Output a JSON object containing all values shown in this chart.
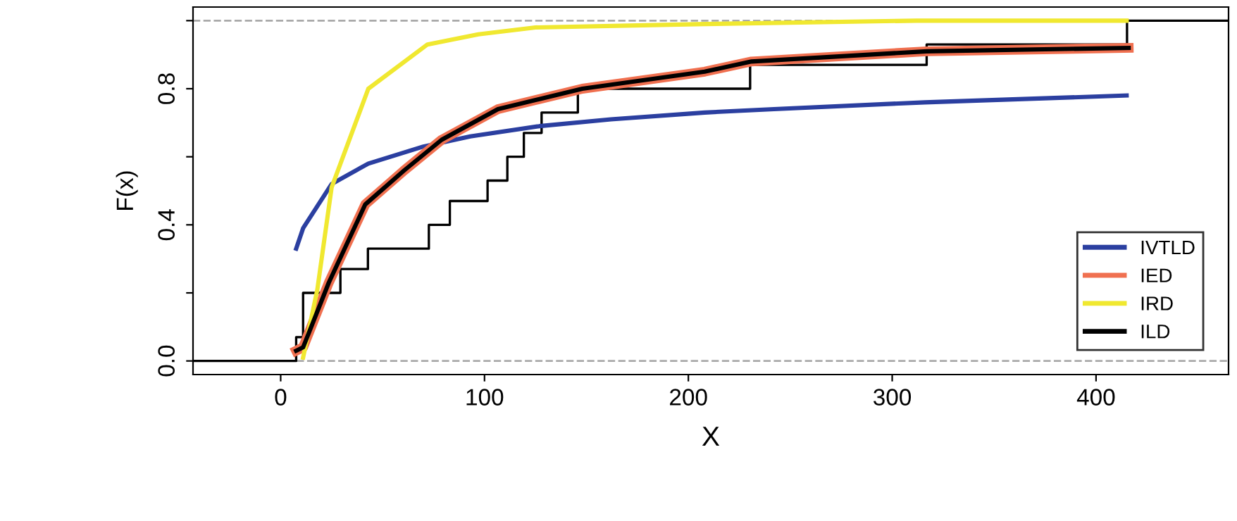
{
  "chart_data": {
    "type": "line",
    "xlabel": "X",
    "ylabel": "F(x)",
    "xlim": [
      -43,
      465
    ],
    "ylim": [
      -0.04,
      1.04
    ],
    "xticks": [
      0,
      100,
      200,
      300,
      400
    ],
    "yticks": [
      {
        "value": 0,
        "label": "0.0"
      },
      {
        "value": 0.2,
        "label": null
      },
      {
        "value": 0.4,
        "label": "0.4"
      },
      {
        "value": 0.6,
        "label": null
      },
      {
        "value": 0.8,
        "label": "0.8"
      },
      {
        "value": 1,
        "label": null
      }
    ],
    "grid": false,
    "legend": "bottom right",
    "line_style": "solid",
    "marker": "none",
    "ref_lines": [
      {
        "axis": "y",
        "value": 0,
        "color": "#aaaaaa",
        "line_style": "dashed"
      },
      {
        "axis": "y",
        "value": 1,
        "color": "#aaaaaa",
        "line_style": "dashed"
      }
    ],
    "series": [
      {
        "type": "step",
        "color": "#000000",
        "x": [
          -43,
          7.6,
          11,
          14.5,
          29.3,
          42.8,
          72.7,
          83,
          101.5,
          111.2,
          119.3,
          128,
          145.8,
          230.3,
          316.9,
          415.2,
          465
        ],
        "values": [
          0,
          0.07,
          0.2,
          0.2,
          0.27,
          0.33,
          0.4,
          0.47,
          0.53,
          0.6,
          0.67,
          0.73,
          0.8,
          0.87,
          0.93,
          1,
          1
        ]
      },
      {
        "name": "IVTLD",
        "color": "#2b3fa0",
        "x": [
          7.6,
          11,
          25,
          43,
          70,
          93,
          127,
          162,
          208,
          242,
          316,
          415
        ],
        "values": [
          0.33,
          0.39,
          0.52,
          0.58,
          0.63,
          0.66,
          0.69,
          0.71,
          0.73,
          0.74,
          0.76,
          0.78
        ]
      },
      {
        "name": "IED",
        "color": "#f07050",
        "x": [
          7.6,
          11,
          23.6,
          41.5,
          60.6,
          79,
          106.6,
          127.3,
          148,
          208,
          231,
          317,
          416
        ],
        "values": [
          0.03,
          0.04,
          0.23,
          0.46,
          0.56,
          0.65,
          0.74,
          0.77,
          0.8,
          0.85,
          0.88,
          0.91,
          0.92
        ]
      },
      {
        "name": "IRD",
        "color": "#f0e830",
        "x": [
          11,
          18,
          25,
          43,
          72,
          97,
          125,
          208,
          312,
          415
        ],
        "values": [
          0.01,
          0.21,
          0.51,
          0.8,
          0.93,
          0.96,
          0.98,
          0.99,
          1,
          1
        ]
      },
      {
        "name": "ILD",
        "color": "#000000",
        "x": [
          7.6,
          11,
          23.6,
          41.5,
          60.6,
          79,
          106.6,
          127.3,
          148,
          208,
          231,
          317,
          416
        ],
        "values": [
          0.03,
          0.04,
          0.23,
          0.46,
          0.56,
          0.65,
          0.74,
          0.77,
          0.8,
          0.85,
          0.88,
          0.91,
          0.92
        ]
      }
    ]
  }
}
